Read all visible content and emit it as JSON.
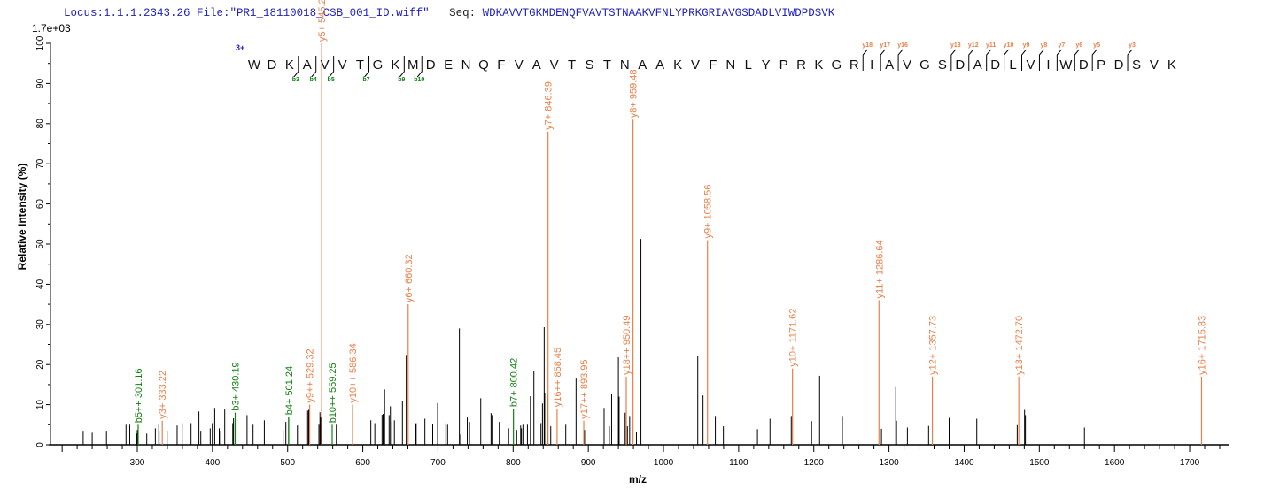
{
  "header": {
    "locus": "Locus:1.1.1.2343.26",
    "file": "File:\"PR1_18110018_CSB_001_ID.wiff\"",
    "seq_label": "Seq:",
    "seq": "WDKAVVTGKMDENQFVAVTSTNAAKVFNLYPRKGRIAVGSDADLVIWDPDSVK"
  },
  "colors": {
    "y_ion": "#e8804a",
    "b_ion": "#108010",
    "peak": "#000000",
    "header": "#2222bb",
    "charge": "#2020cc"
  },
  "chart_data": {
    "type": "bar",
    "title": "",
    "scale_label": "1.7e+03",
    "xlabel": "m/z",
    "ylabel": "Relative  Intensity (%)",
    "xlim": [
      200,
      1750
    ],
    "ylim": [
      0,
      100
    ],
    "x_ticks": [
      300,
      400,
      500,
      600,
      700,
      800,
      900,
      1000,
      1100,
      1200,
      1300,
      1400,
      1500,
      1600,
      1700
    ],
    "y_ticks": [
      0,
      10,
      20,
      30,
      40,
      50,
      60,
      70,
      80,
      90,
      100
    ],
    "grid": false,
    "precursor_charge": "3+",
    "sequence": [
      "W",
      "D",
      "K",
      "A",
      "V",
      "V",
      "T",
      "G",
      "K",
      "M",
      "D",
      "E",
      "N",
      "Q",
      "F",
      "V",
      "A",
      "V",
      "T",
      "S",
      "T",
      "N",
      "A",
      "A",
      "K",
      "V",
      "F",
      "N",
      "L",
      "Y",
      "P",
      "R",
      "K",
      "G",
      "R",
      "I",
      "A",
      "V",
      "G",
      "S",
      "D",
      "A",
      "D",
      "L",
      "V",
      "I",
      "W",
      "D",
      "P",
      "D",
      "S",
      "V",
      "K"
    ],
    "b_ions": [
      {
        "n": 3,
        "label": "b3"
      },
      {
        "n": 4,
        "label": "b4"
      },
      {
        "n": 5,
        "label": "b5"
      },
      {
        "n": 7,
        "label": "b7"
      },
      {
        "n": 9,
        "label": "b9"
      },
      {
        "n": 10,
        "label": "b10"
      }
    ],
    "y_ions": [
      {
        "n": 18,
        "label": "y18"
      },
      {
        "n": 17,
        "label": "y17"
      },
      {
        "n": 16,
        "label": "y16"
      },
      {
        "n": 13,
        "label": "y13"
      },
      {
        "n": 12,
        "label": "y12"
      },
      {
        "n": 11,
        "label": "y11"
      },
      {
        "n": 10,
        "label": "y10"
      },
      {
        "n": 9,
        "label": "y9"
      },
      {
        "n": 8,
        "label": "y8"
      },
      {
        "n": 7,
        "label": "y7"
      },
      {
        "n": 6,
        "label": "y6"
      },
      {
        "n": 5,
        "label": "y5"
      },
      {
        "n": 3,
        "label": "y3"
      }
    ],
    "annotated_peaks": [
      {
        "label": "b5++ 301.16",
        "mz": 301.16,
        "intensity": 5,
        "ion": "b"
      },
      {
        "label": "y3+ 333.22",
        "mz": 333.22,
        "intensity": 6,
        "ion": "y"
      },
      {
        "label": "b3+ 430.19",
        "mz": 430.19,
        "intensity": 8,
        "ion": "b"
      },
      {
        "label": "b4+ 501.24",
        "mz": 501.24,
        "intensity": 7,
        "ion": "b"
      },
      {
        "label": "y9++ 529.32",
        "mz": 529.32,
        "intensity": 10,
        "ion": "y"
      },
      {
        "label": "y5+ 545.28",
        "mz": 545.28,
        "intensity": 100,
        "ion": "y"
      },
      {
        "label": "b10++ 559.25",
        "mz": 559.25,
        "intensity": 5,
        "ion": "b"
      },
      {
        "label": "y10++ 586.34",
        "mz": 586.34,
        "intensity": 10,
        "ion": "y"
      },
      {
        "label": "y6+ 660.32",
        "mz": 660.32,
        "intensity": 35,
        "ion": "y"
      },
      {
        "label": "b7+ 800.42",
        "mz": 800.42,
        "intensity": 9,
        "ion": "b"
      },
      {
        "label": "y7+ 846.39",
        "mz": 846.39,
        "intensity": 78,
        "ion": "y"
      },
      {
        "label": "y16++ 858.45",
        "mz": 858.45,
        "intensity": 9,
        "ion": "y"
      },
      {
        "label": "y17++ 893.95",
        "mz": 893.95,
        "intensity": 6,
        "ion": "y"
      },
      {
        "label": "y18++ 950.49",
        "mz": 950.49,
        "intensity": 17,
        "ion": "y"
      },
      {
        "label": "y8+ 959.48",
        "mz": 959.48,
        "intensity": 81,
        "ion": "y"
      },
      {
        "label": "y9+ 1058.56",
        "mz": 1058.56,
        "intensity": 51,
        "ion": "y"
      },
      {
        "label": "y10+ 1171.62",
        "mz": 1171.62,
        "intensity": 19,
        "ion": "y"
      },
      {
        "label": "y11+ 1286.64",
        "mz": 1286.64,
        "intensity": 36,
        "ion": "y"
      },
      {
        "label": "y12+ 1357.73",
        "mz": 1357.73,
        "intensity": 17,
        "ion": "y"
      },
      {
        "label": "y13+ 1472.70",
        "mz": 1472.7,
        "intensity": 17,
        "ion": "y"
      },
      {
        "label": "y16+ 1715.83",
        "mz": 1715.83,
        "intensity": 17,
        "ion": "y"
      }
    ],
    "peaks": [
      [
        228,
        3.5
      ],
      [
        240,
        3
      ],
      [
        259,
        3.5
      ],
      [
        285,
        5
      ],
      [
        290,
        5
      ],
      [
        299,
        2.8
      ],
      [
        300,
        3.7
      ],
      [
        312.6,
        2.8
      ],
      [
        324,
        4.1
      ],
      [
        328.6,
        5
      ],
      [
        329,
        3.5
      ],
      [
        339.7,
        3.5
      ],
      [
        353,
        4.8
      ],
      [
        359.7,
        5.4
      ],
      [
        371.5,
        5.4
      ],
      [
        382,
        8.3
      ],
      [
        384.5,
        3.5
      ],
      [
        397,
        4.1
      ],
      [
        399.8,
        5.4
      ],
      [
        403,
        9.2
      ],
      [
        409,
        4.1
      ],
      [
        411,
        3.5
      ],
      [
        416.3,
        8.8
      ],
      [
        427,
        5.4
      ],
      [
        428,
        6.6
      ],
      [
        446,
        7.4
      ],
      [
        454,
        5
      ],
      [
        469,
        6.1
      ],
      [
        494,
        3.7
      ],
      [
        497.6,
        5.7
      ],
      [
        501.5,
        6.5
      ],
      [
        513,
        4.8
      ],
      [
        515,
        5.4
      ],
      [
        526.6,
        8.5
      ],
      [
        528,
        8.7
      ],
      [
        541.6,
        5
      ],
      [
        543,
        8.1
      ],
      [
        544,
        6.8
      ],
      [
        564.8,
        5
      ],
      [
        610.7,
        6.1
      ],
      [
        616,
        5.4
      ],
      [
        625.6,
        7.5
      ],
      [
        627,
        7.7
      ],
      [
        629,
        13.8
      ],
      [
        635,
        7.4
      ],
      [
        636.7,
        9.6
      ],
      [
        638.7,
        5.7
      ],
      [
        642,
        6.1
      ],
      [
        652.7,
        11
      ],
      [
        657.8,
        22.4
      ],
      [
        670,
        5.2
      ],
      [
        671,
        5.4
      ],
      [
        682.6,
        6.5
      ],
      [
        693,
        5.2
      ],
      [
        699.5,
        10.4
      ],
      [
        710.5,
        5.4
      ],
      [
        712.8,
        5
      ],
      [
        728.5,
        29
      ],
      [
        729,
        2.6
      ],
      [
        739,
        6.8
      ],
      [
        742,
        5.7
      ],
      [
        756.9,
        11.6
      ],
      [
        770.6,
        7.9
      ],
      [
        771.7,
        7.4
      ],
      [
        781.6,
        5.7
      ],
      [
        794,
        4.1
      ],
      [
        804.7,
        3.7
      ],
      [
        810,
        4.8
      ],
      [
        811,
        4.1
      ],
      [
        813,
        5
      ],
      [
        819,
        5
      ],
      [
        823,
        12.1
      ],
      [
        827.6,
        18.4
      ],
      [
        837,
        5.4
      ],
      [
        839,
        10.3
      ],
      [
        841.3,
        29.3
      ],
      [
        842,
        13
      ],
      [
        846,
        12.6
      ],
      [
        850,
        4.6
      ],
      [
        870,
        5
      ],
      [
        883.7,
        16.5
      ],
      [
        895,
        3.7
      ],
      [
        921,
        9.2
      ],
      [
        928,
        4.6
      ],
      [
        931,
        12.7
      ],
      [
        940,
        21.8
      ],
      [
        941,
        12
      ],
      [
        949,
        8
      ],
      [
        952,
        4.6
      ],
      [
        955,
        7.2
      ],
      [
        964,
        3.2
      ],
      [
        970,
        51.3
      ],
      [
        1045.6,
        22.2
      ],
      [
        1052.6,
        12.3
      ],
      [
        1069,
        7.2
      ],
      [
        1079.7,
        4.6
      ],
      [
        1125,
        3.9
      ],
      [
        1141.7,
        6.5
      ],
      [
        1170,
        7.2
      ],
      [
        1197,
        5.9
      ],
      [
        1207.7,
        17.2
      ],
      [
        1238,
        7.2
      ],
      [
        1290,
        4
      ],
      [
        1309,
        14.4
      ],
      [
        1310,
        6
      ],
      [
        1324.5,
        4.3
      ],
      [
        1352.7,
        4.7
      ],
      [
        1380,
        6.7
      ],
      [
        1381,
        5.6
      ],
      [
        1416.8,
        6.5
      ],
      [
        1470.6,
        4.9
      ],
      [
        1480.4,
        8.7
      ],
      [
        1481.5,
        7.4
      ],
      [
        1560,
        4.3
      ]
    ]
  }
}
